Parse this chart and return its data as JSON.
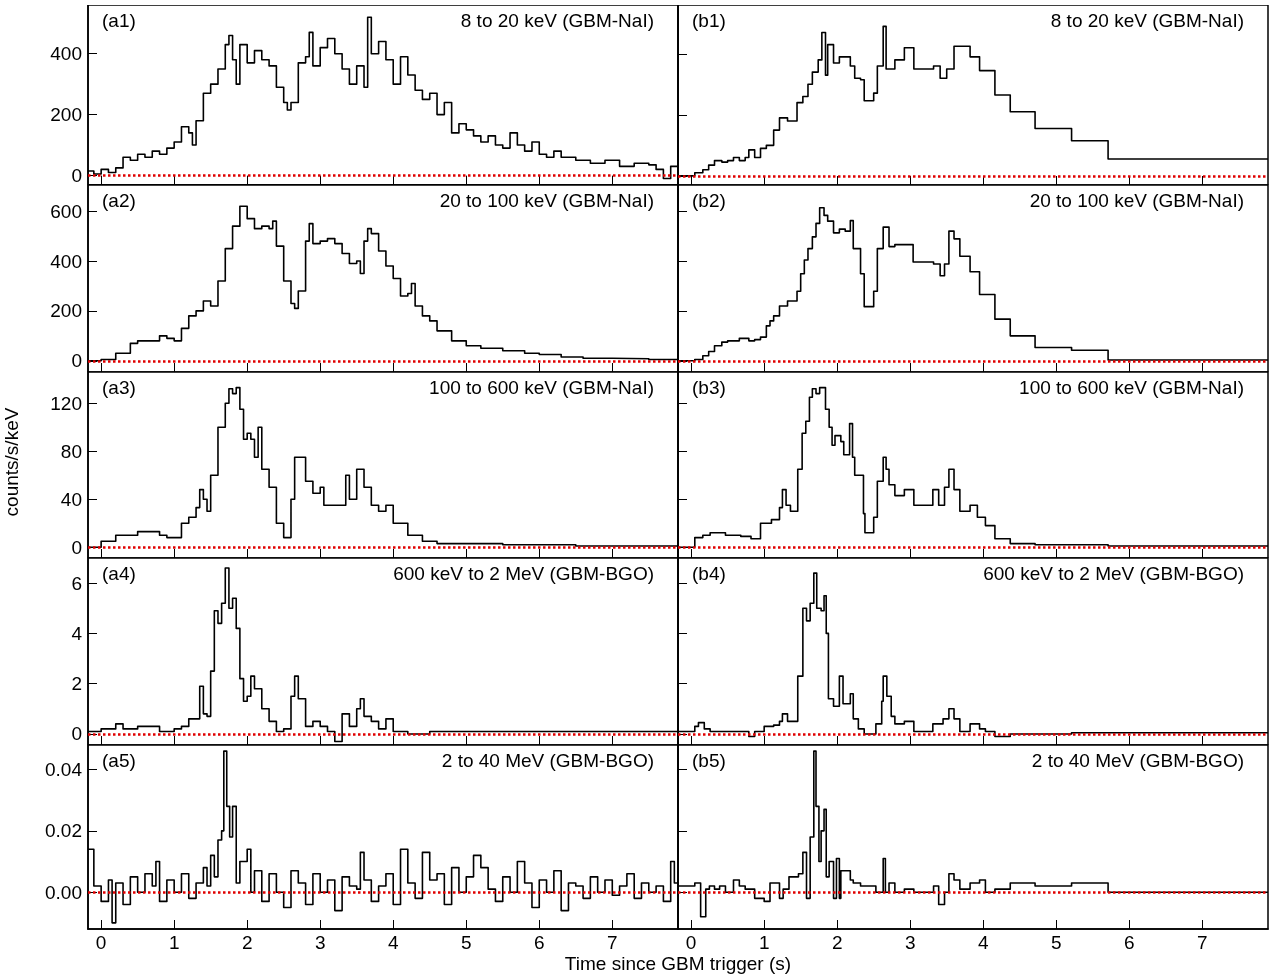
{
  "chart_data": [
    {
      "type": "step",
      "annotations": [
        "(a1)",
        "8 to 20 keV (GBM-NaI)"
      ],
      "xlim": [
        -0.18,
        7.9
      ],
      "xticks": [
        0,
        1,
        2,
        3,
        4,
        5,
        6,
        7
      ],
      "ylim": [
        -30,
        560
      ],
      "yticks": [
        0,
        200,
        400
      ],
      "tick_labels": "y",
      "ref_lines": [
        {
          "axis": "y",
          "value": 0,
          "color": "#e00000",
          "line_style": "dotted"
        }
      ],
      "x": [
        -0.18,
        -0.1,
        0,
        0.1,
        0.2,
        0.3,
        0.4,
        0.5,
        0.6,
        0.7,
        0.8,
        0.9,
        1,
        1.1,
        1.2,
        1.25,
        1.3,
        1.4,
        1.5,
        1.6,
        1.7,
        1.75,
        1.8,
        1.85,
        1.9,
        2,
        2.1,
        2.2,
        2.3,
        2.4,
        2.5,
        2.55,
        2.6,
        2.7,
        2.8,
        2.85,
        2.9,
        3,
        3.1,
        3.2,
        3.3,
        3.4,
        3.5,
        3.6,
        3.65,
        3.7,
        3.8,
        3.9,
        4,
        4.1,
        4.2,
        4.3,
        4.4,
        4.5,
        4.6,
        4.7,
        4.8,
        4.9,
        5,
        5.1,
        5.2,
        5.3,
        5.4,
        5.5,
        5.6,
        5.7,
        5.8,
        5.9,
        6,
        6.1,
        6.2,
        6.3,
        6.5,
        6.7,
        6.9,
        7.1,
        7.3,
        7.5,
        7.6,
        7.7,
        7.8,
        7.9
      ],
      "series": [
        {
          "color": "#000000",
          "values": [
            15,
            5,
            20,
            10,
            25,
            60,
            50,
            70,
            60,
            80,
            70,
            90,
            110,
            160,
            140,
            100,
            180,
            270,
            300,
            350,
            430,
            460,
            380,
            300,
            430,
            370,
            410,
            380,
            360,
            290,
            240,
            215,
            240,
            370,
            390,
            470,
            360,
            420,
            450,
            400,
            350,
            300,
            360,
            290,
            520,
            400,
            440,
            380,
            300,
            390,
            330,
            280,
            250,
            270,
            200,
            240,
            140,
            170,
            150,
            130,
            110,
            130,
            100,
            90,
            140,
            100,
            80,
            110,
            70,
            60,
            80,
            60,
            50,
            40,
            50,
            30,
            40,
            35,
            20,
            -10,
            30,
            30
          ]
        }
      ]
    },
    {
      "type": "step",
      "annotations": [
        "(b1)",
        "8 to 20 keV (GBM-NaI)"
      ],
      "xlim": [
        -0.18,
        7.9
      ],
      "xticks": [
        0,
        1,
        2,
        3,
        4,
        5,
        6,
        7
      ],
      "ylim": [
        -30,
        560
      ],
      "yticks": [
        0,
        200,
        400
      ],
      "tick_labels": false,
      "ref_lines": [
        {
          "axis": "y",
          "value": 0,
          "color": "#e00000",
          "line_style": "dotted"
        }
      ],
      "x": [
        -0.18,
        0.05,
        0.16,
        0.24,
        0.32,
        0.42,
        0.5,
        0.58,
        0.66,
        0.74,
        0.79,
        0.87,
        0.95,
        1.03,
        1.13,
        1.21,
        1.32,
        1.45,
        1.53,
        1.6,
        1.66,
        1.74,
        1.79,
        1.84,
        1.87,
        1.95,
        2.03,
        2.18,
        2.24,
        2.32,
        2.37,
        2.5,
        2.55,
        2.63,
        2.67,
        2.79,
        2.92,
        3.05,
        3.32,
        3.41,
        3.5,
        3.6,
        3.82,
        3.95,
        4.16,
        4.37,
        4.71,
        5.21,
        5.71,
        7.9
      ],
      "series": [
        {
          "color": "#000000",
          "values": [
            0,
            10,
            20,
            35,
            50,
            45,
            50,
            60,
            50,
            60,
            85,
            60,
            90,
            100,
            150,
            190,
            180,
            240,
            260,
            300,
            340,
            380,
            470,
            330,
            430,
            370,
            390,
            360,
            320,
            315,
            246,
            271,
            360,
            490,
            350,
            380,
            420,
            350,
            360,
            320,
            350,
            425,
            390,
            345,
            265,
            210,
            155,
            115,
            55,
            55
          ]
        }
      ]
    },
    {
      "type": "step",
      "annotations": [
        "(a2)",
        "20 to 100 keV (GBM-NaI)"
      ],
      "xlim": [
        -0.18,
        7.9
      ],
      "xticks": [
        0,
        1,
        2,
        3,
        4,
        5,
        6,
        7
      ],
      "ylim": [
        -45,
        705
      ],
      "yticks": [
        0,
        200,
        400,
        600
      ],
      "tick_labels": "y",
      "ref_lines": [
        {
          "axis": "y",
          "value": 0,
          "color": "#e00000",
          "line_style": "dotted"
        }
      ],
      "x": [
        -0.18,
        0,
        0.2,
        0.4,
        0.5,
        0.7,
        0.8,
        0.9,
        1,
        1.1,
        1.2,
        1.3,
        1.4,
        1.5,
        1.6,
        1.7,
        1.8,
        1.9,
        2,
        2.1,
        2.2,
        2.3,
        2.35,
        2.4,
        2.5,
        2.6,
        2.65,
        2.7,
        2.8,
        2.85,
        2.9,
        3,
        3.1,
        3.2,
        3.3,
        3.4,
        3.5,
        3.55,
        3.6,
        3.65,
        3.7,
        3.8,
        3.9,
        4,
        4.1,
        4.2,
        4.25,
        4.3,
        4.4,
        4.5,
        4.6,
        4.8,
        5,
        5.2,
        5.5,
        5.8,
        6,
        6.3,
        6.6,
        7,
        7.5,
        7.9
      ],
      "series": [
        {
          "color": "#000000",
          "values": [
            0,
            5,
            30,
            70,
            80,
            80,
            100,
            90,
            80,
            130,
            180,
            200,
            240,
            220,
            320,
            450,
            540,
            620,
            570,
            530,
            540,
            530,
            560,
            460,
            320,
            230,
            210,
            280,
            480,
            550,
            470,
            480,
            490,
            470,
            430,
            390,
            400,
            350,
            480,
            530,
            510,
            440,
            380,
            330,
            260,
            270,
            310,
            220,
            180,
            160,
            120,
            80,
            60,
            50,
            40,
            30,
            25,
            15,
            10,
            8,
            5,
            5
          ]
        }
      ]
    },
    {
      "type": "step",
      "annotations": [
        "(b2)",
        "20 to 100 keV (GBM-NaI)"
      ],
      "xlim": [
        -0.18,
        7.9
      ],
      "xticks": [
        0,
        1,
        2,
        3,
        4,
        5,
        6,
        7
      ],
      "ylim": [
        -45,
        705
      ],
      "yticks": [
        0,
        200,
        400,
        600
      ],
      "tick_labels": false,
      "ref_lines": [
        {
          "axis": "y",
          "value": 0,
          "color": "#e00000",
          "line_style": "dotted"
        }
      ],
      "x": [
        -0.18,
        0.05,
        0.16,
        0.24,
        0.32,
        0.42,
        0.5,
        0.66,
        0.79,
        0.87,
        0.95,
        1.03,
        1.08,
        1.13,
        1.21,
        1.32,
        1.45,
        1.5,
        1.55,
        1.6,
        1.66,
        1.71,
        1.76,
        1.82,
        1.87,
        1.95,
        2.03,
        2.11,
        2.18,
        2.22,
        2.32,
        2.37,
        2.5,
        2.55,
        2.63,
        2.71,
        2.79,
        3.04,
        3.32,
        3.41,
        3.47,
        3.53,
        3.6,
        3.68,
        3.82,
        3.95,
        4.16,
        4.37,
        4.71,
        5.21,
        5.71,
        7.9
      ],
      "series": [
        {
          "color": "#000000",
          "values": [
            0,
            5,
            20,
            37,
            60,
            75,
            80,
            90,
            80,
            85,
            95,
            140,
            160,
            180,
            220,
            240,
            279,
            349,
            404,
            450,
            497,
            551,
            614,
            583,
            560,
            513,
            528,
            520,
            562,
            450,
            349,
            217,
            279,
            450,
            536,
            458,
            466,
            396,
            388,
            341,
            388,
            520,
            489,
            419,
            357,
            266,
            167,
            100,
            53,
            42,
            3,
            3
          ]
        }
      ]
    },
    {
      "type": "step",
      "annotations": [
        "(a3)",
        "100 to 600 keV (GBM-NaI)"
      ],
      "ylabel": "counts/s/keV",
      "xlim": [
        -0.18,
        7.9
      ],
      "xticks": [
        0,
        1,
        2,
        3,
        4,
        5,
        6,
        7
      ],
      "ylim": [
        -9,
        146
      ],
      "yticks": [
        0,
        40,
        80,
        120
      ],
      "tick_labels": "y",
      "ref_lines": [
        {
          "axis": "y",
          "value": 0,
          "color": "#e00000",
          "line_style": "dotted"
        }
      ],
      "x": [
        -0.18,
        0,
        0.2,
        0.5,
        0.8,
        0.9,
        1,
        1.1,
        1.2,
        1.3,
        1.35,
        1.4,
        1.45,
        1.5,
        1.6,
        1.7,
        1.75,
        1.8,
        1.85,
        1.9,
        1.95,
        2,
        2.05,
        2.1,
        2.15,
        2.2,
        2.3,
        2.4,
        2.5,
        2.6,
        2.65,
        2.7,
        2.8,
        2.9,
        3,
        3.05,
        3.2,
        3.35,
        3.4,
        3.5,
        3.6,
        3.7,
        3.8,
        3.9,
        4,
        4.2,
        4.4,
        4.6,
        5,
        5.5,
        6.5,
        7.5,
        7.9
      ],
      "series": [
        {
          "color": "#000000",
          "values": [
            0,
            5,
            10,
            13,
            10,
            8,
            8,
            20,
            25,
            33,
            48,
            40,
            30,
            60,
            100,
            120,
            132,
            128,
            133,
            115,
            90,
            95,
            90,
            75,
            100,
            65,
            50,
            20,
            8,
            40,
            75,
            75,
            55,
            45,
            50,
            35,
            35,
            60,
            40,
            65,
            50,
            35,
            30,
            35,
            20,
            10,
            5,
            3,
            3,
            2,
            1,
            1,
            1
          ]
        }
      ]
    },
    {
      "type": "step",
      "annotations": [
        "(b3)",
        "100 to 600 keV (GBM-NaI)"
      ],
      "xlim": [
        -0.18,
        7.9
      ],
      "xticks": [
        0,
        1,
        2,
        3,
        4,
        5,
        6,
        7
      ],
      "ylim": [
        -9,
        146
      ],
      "yticks": [
        0,
        40,
        80,
        120
      ],
      "tick_labels": false,
      "ref_lines": [
        {
          "axis": "y",
          "value": 0,
          "color": "#e00000",
          "line_style": "dotted"
        }
      ],
      "x": [
        -0.18,
        0.05,
        0.16,
        0.26,
        0.4,
        0.47,
        0.68,
        0.82,
        0.95,
        1.1,
        1.21,
        1.25,
        1.3,
        1.36,
        1.46,
        1.52,
        1.57,
        1.62,
        1.66,
        1.71,
        1.76,
        1.84,
        1.89,
        1.93,
        1.97,
        2.05,
        2.09,
        2.17,
        2.21,
        2.24,
        2.36,
        2.38,
        2.5,
        2.55,
        2.63,
        2.67,
        2.71,
        2.79,
        2.92,
        3.05,
        3.31,
        3.39,
        3.47,
        3.53,
        3.6,
        3.68,
        3.82,
        3.92,
        4.03,
        4.16,
        4.37,
        4.71,
        5.71,
        7.9
      ],
      "series": [
        {
          "color": "#000000",
          "values": [
            0,
            8,
            10,
            12,
            12,
            10,
            9,
            7,
            20,
            23,
            33,
            48,
            35,
            30,
            65,
            95,
            105,
            125,
            132,
            128,
            133,
            115,
            100,
            85,
            93,
            88,
            77,
            103,
            75,
            60,
            28,
            12,
            25,
            55,
            75,
            65,
            52,
            43,
            48,
            35,
            48,
            35,
            50,
            65,
            48,
            30,
            35,
            25,
            18,
            7,
            3,
            2,
            1,
            1
          ]
        }
      ]
    },
    {
      "type": "step",
      "annotations": [
        "(a4)",
        "600 keV to 2 MeV (GBM-BGO)"
      ],
      "xlim": [
        -0.18,
        7.9
      ],
      "xticks": [
        0,
        1,
        2,
        3,
        4,
        5,
        6,
        7
      ],
      "ylim": [
        -0.44,
        7
      ],
      "yticks": [
        0,
        2,
        4,
        6
      ],
      "tick_labels": "y",
      "ref_lines": [
        {
          "axis": "y",
          "value": 0,
          "color": "#e00000",
          "line_style": "dotted"
        }
      ],
      "x": [
        -0.18,
        0,
        0.2,
        0.3,
        0.5,
        0.8,
        1,
        1.1,
        1.2,
        1.3,
        1.35,
        1.4,
        1.45,
        1.5,
        1.55,
        1.6,
        1.65,
        1.7,
        1.75,
        1.8,
        1.85,
        1.9,
        1.95,
        2,
        2.05,
        2.1,
        2.2,
        2.3,
        2.4,
        2.5,
        2.6,
        2.65,
        2.7,
        2.8,
        2.9,
        3,
        3.1,
        3.2,
        3.3,
        3.4,
        3.5,
        3.55,
        3.6,
        3.7,
        3.8,
        3.9,
        4,
        4.2,
        4.5,
        5,
        5.5,
        6,
        6.5,
        7,
        7.5,
        7.9
      ],
      "series": [
        {
          "color": "#000000",
          "values": [
            0.1,
            0.2,
            0.4,
            0.2,
            0.3,
            0.1,
            0.2,
            0.3,
            0.6,
            0.6,
            1.9,
            0.8,
            0.7,
            2.5,
            4.9,
            4.4,
            5.2,
            6.6,
            5,
            5.4,
            4.2,
            2.2,
            1.3,
            1.5,
            2.3,
            1.8,
            1,
            0.5,
            0.1,
            0.2,
            1.5,
            2.3,
            1.4,
            0.3,
            0.5,
            0.3,
            0.1,
            -0.3,
            0.8,
            0.3,
            1,
            1.4,
            0.7,
            0.5,
            0.2,
            0.6,
            0.1,
            0,
            0.1,
            0.1,
            0.1,
            0.1,
            0.1,
            0.1,
            0.1,
            0.1
          ]
        }
      ]
    },
    {
      "type": "step",
      "annotations": [
        "(b4)",
        "600 keV to 2 MeV (GBM-BGO)"
      ],
      "xlim": [
        -0.18,
        7.9
      ],
      "xticks": [
        0,
        1,
        2,
        3,
        4,
        5,
        6,
        7
      ],
      "ylim": [
        -0.44,
        7
      ],
      "yticks": [
        0,
        2,
        4,
        6
      ],
      "tick_labels": false,
      "ref_lines": [
        {
          "axis": "y",
          "value": 0,
          "color": "#e00000",
          "line_style": "dotted"
        }
      ],
      "x": [
        -0.18,
        0.05,
        0.1,
        0.18,
        0.26,
        0.47,
        0.71,
        0.79,
        0.87,
        1,
        1.13,
        1.21,
        1.25,
        1.32,
        1.46,
        1.53,
        1.58,
        1.63,
        1.68,
        1.72,
        1.78,
        1.82,
        1.85,
        1.88,
        1.95,
        2.03,
        2.08,
        2.18,
        2.22,
        2.29,
        2.37,
        2.53,
        2.61,
        2.63,
        2.68,
        2.74,
        2.79,
        2.92,
        3.05,
        3.31,
        3.45,
        3.53,
        3.6,
        3.68,
        3.82,
        3.95,
        4.03,
        4.16,
        4.37,
        4.71,
        5.21,
        7.9
      ],
      "series": [
        {
          "color": "#000000",
          "values": [
            0.1,
            0.3,
            0.45,
            0.2,
            0.1,
            0.1,
            0.1,
            -0.1,
            0.1,
            0.3,
            0.35,
            0.5,
            0.8,
            0.5,
            2.3,
            5,
            4.5,
            5.2,
            6.4,
            5,
            4.9,
            5.5,
            4,
            1.4,
            1.1,
            2.3,
            1.2,
            1.6,
            0.6,
            0.2,
            0,
            0.4,
            1.3,
            2.3,
            1.5,
            0.7,
            0.4,
            0.5,
            0.1,
            0.4,
            0.6,
            1,
            0.6,
            0.1,
            0.4,
            0.2,
            0.1,
            -0.1,
            0,
            0,
            0.05,
            0.05
          ]
        }
      ]
    },
    {
      "type": "step",
      "annotations": [
        "(a5)",
        "2 to 40 MeV (GBM-BGO)"
      ],
      "xlabel": "Time since GBM trigger (s)",
      "xlim": [
        -0.18,
        7.9
      ],
      "xticks": [
        0,
        1,
        2,
        3,
        4,
        5,
        6,
        7
      ],
      "ylim": [
        -0.012,
        0.048
      ],
      "yticks": [
        {
          "value": 0,
          "label": "0.00"
        },
        {
          "value": 0.02,
          "label": "0.02"
        },
        {
          "value": 0.04,
          "label": "0.04"
        }
      ],
      "ref_lines": [
        {
          "axis": "y",
          "value": 0,
          "color": "#e00000",
          "line_style": "dotted"
        }
      ],
      "x": [
        -0.18,
        -0.1,
        0,
        0.1,
        0.15,
        0.2,
        0.3,
        0.4,
        0.5,
        0.6,
        0.7,
        0.75,
        0.8,
        0.9,
        1,
        1.1,
        1.2,
        1.3,
        1.4,
        1.45,
        1.5,
        1.55,
        1.6,
        1.65,
        1.68,
        1.72,
        1.76,
        1.8,
        1.85,
        1.9,
        2,
        2.05,
        2.1,
        2.2,
        2.3,
        2.4,
        2.5,
        2.6,
        2.7,
        2.8,
        2.9,
        3,
        3.1,
        3.2,
        3.3,
        3.4,
        3.5,
        3.55,
        3.6,
        3.7,
        3.8,
        3.9,
        4,
        4.1,
        4.2,
        4.3,
        4.4,
        4.5,
        4.6,
        4.7,
        4.8,
        4.9,
        5,
        5.1,
        5.2,
        5.3,
        5.4,
        5.5,
        5.6,
        5.7,
        5.8,
        5.9,
        6,
        6.1,
        6.2,
        6.3,
        6.4,
        6.5,
        6.6,
        6.7,
        6.8,
        6.9,
        7,
        7.1,
        7.2,
        7.3,
        7.4,
        7.5,
        7.6,
        7.7,
        7.8,
        7.85,
        7.9
      ],
      "series": [
        {
          "color": "#000000",
          "values": [
            0.014,
            0.002,
            -0.003,
            0.004,
            -0.01,
            0.003,
            -0.004,
            0.005,
            0,
            0.006,
            0.002,
            0.01,
            -0.003,
            0.004,
            0,
            0.006,
            -0.002,
            0.003,
            0.008,
            0.002,
            0.012,
            0.005,
            0.017,
            0.02,
            0.046,
            0.028,
            0.018,
            0.028,
            0.003,
            0.01,
            0.014,
            0,
            0.007,
            -0.003,
            0.006,
            0,
            -0.005,
            0.007,
            0.003,
            -0.004,
            0.006,
            0,
            0.004,
            -0.006,
            0.005,
            0.002,
            0.001,
            0.013,
            0.004,
            -0.003,
            0.002,
            0.006,
            -0.004,
            0.014,
            0.003,
            -0.002,
            0.013,
            0.004,
            0.006,
            -0.004,
            0.008,
            0,
            0.005,
            0.012,
            0.008,
            0.001,
            -0.003,
            0.005,
            0,
            0.01,
            0.003,
            -0.005,
            0.004,
            0,
            0.007,
            -0.006,
            0.003,
            0.002,
            -0.002,
            0.005,
            0,
            0.004,
            -0.001,
            0.002,
            0.006,
            -0.002,
            0.003,
            0,
            0.002,
            -0.003,
            0.01,
            0.003,
            0.003
          ]
        }
      ]
    },
    {
      "type": "step",
      "annotations": [
        "(b5)",
        "2 to 40 MeV (GBM-BGO)"
      ],
      "xlim": [
        -0.18,
        7.9
      ],
      "xticks": [
        0,
        1,
        2,
        3,
        4,
        5,
        6,
        7
      ],
      "ylim": [
        -0.012,
        0.048
      ],
      "yticks": [
        0,
        0.02,
        0.04
      ],
      "tick_labels": "x",
      "ref_lines": [
        {
          "axis": "y",
          "value": 0,
          "color": "#e00000",
          "line_style": "dotted"
        }
      ],
      "x": [
        -0.18,
        0.05,
        0.13,
        0.2,
        0.25,
        0.32,
        0.39,
        0.47,
        0.58,
        0.66,
        0.74,
        0.87,
        1,
        1.08,
        1.21,
        1.26,
        1.34,
        1.47,
        1.53,
        1.58,
        1.63,
        1.68,
        1.71,
        1.75,
        1.78,
        1.82,
        1.85,
        1.89,
        1.95,
        1.99,
        2.03,
        2.05,
        2.18,
        2.22,
        2.32,
        2.53,
        2.63,
        2.66,
        2.71,
        2.79,
        2.92,
        3.05,
        3.32,
        3.39,
        3.47,
        3.53,
        3.6,
        3.68,
        3.82,
        3.95,
        4.03,
        4.16,
        4.37,
        4.71,
        5.21,
        5.71,
        7.9
      ],
      "series": [
        {
          "color": "#000000",
          "values": [
            0.002,
            0.003,
            -0.008,
            0.001,
            0.002,
            0.001,
            0.002,
            0,
            0.004,
            0.002,
            0.001,
            -0.002,
            -0.003,
            0.003,
            -0.002,
            0.001,
            0.005,
            0.006,
            0.013,
            -0.002,
            0.018,
            0.046,
            0.028,
            0.01,
            0.02,
            0.027,
            0.005,
            0.01,
            -0.002,
            0.011,
            -0.002,
            0.007,
            0.004,
            0.003,
            0.002,
            0,
            0.011,
            0,
            0.003,
            0,
            0.001,
            0,
            0.002,
            -0.004,
            0,
            0.006,
            0.004,
            0.001,
            0.003,
            0.004,
            0,
            0.001,
            0.003,
            0.002,
            0.003,
            0,
            0
          ]
        }
      ]
    }
  ]
}
